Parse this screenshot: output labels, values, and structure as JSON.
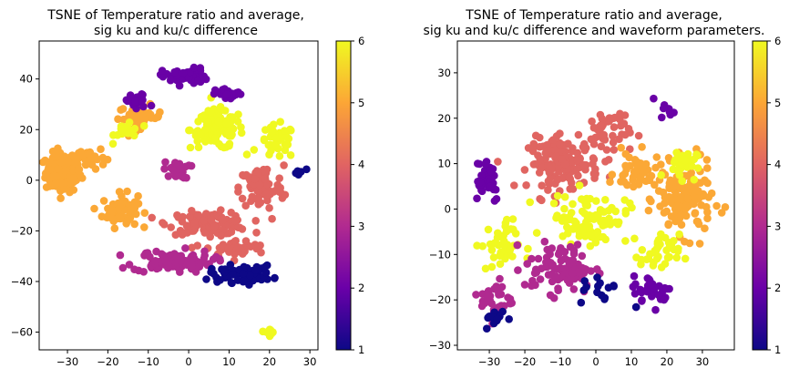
{
  "chart_data": [
    {
      "type": "scatter",
      "title_line1": "TSNE of Temperature ratio and average,",
      "title_line2": "sig ku and ku/c difference",
      "xlim": [
        -37,
        32
      ],
      "ylim": [
        -67,
        55
      ],
      "x_ticks": [
        -30,
        -20,
        -10,
        0,
        10,
        20,
        30
      ],
      "y_ticks": [
        -60,
        -40,
        -20,
        0,
        20,
        40
      ],
      "x_tick_labels": [
        "−30",
        "−20",
        "−10",
        "0",
        "10",
        "20",
        "30"
      ],
      "y_tick_labels": [
        "−60",
        "−40",
        "−20",
        "0",
        "20",
        "40"
      ],
      "colorbar": {
        "min": 1,
        "max": 6,
        "ticks": [
          1,
          2,
          3,
          4,
          5,
          6
        ],
        "tick_labels": [
          "1",
          "2",
          "3",
          "4",
          "5",
          "6"
        ],
        "colormap": "plasma"
      },
      "clusters": [
        {
          "label": "left orange mass",
          "center": [
            -31,
            3
          ],
          "spread": [
            4,
            7
          ],
          "count": 150,
          "value": 5
        },
        {
          "label": "left orange mass upper",
          "center": [
            -25,
            9
          ],
          "spread": [
            4,
            4
          ],
          "count": 40,
          "value": 5
        },
        {
          "label": "orange arc lower",
          "center": [
            -17,
            -12
          ],
          "spread": [
            4,
            6
          ],
          "count": 60,
          "value": 5
        },
        {
          "label": "orange arc top",
          "center": [
            -12,
            25
          ],
          "spread": [
            5,
            4
          ],
          "count": 40,
          "value": 5
        },
        {
          "label": "yellow upper center",
          "center": [
            7,
            20
          ],
          "spread": [
            6,
            7
          ],
          "count": 110,
          "value": 6
        },
        {
          "label": "yellow right",
          "center": [
            22,
            15
          ],
          "spread": [
            4,
            6
          ],
          "count": 40,
          "value": 6
        },
        {
          "label": "yellow upper left",
          "center": [
            -15,
            20
          ],
          "spread": [
            3,
            4
          ],
          "count": 20,
          "value": 6
        },
        {
          "label": "salmon center band",
          "center": [
            5,
            -17
          ],
          "spread": [
            9,
            4
          ],
          "count": 110,
          "value": 4
        },
        {
          "label": "salmon right",
          "center": [
            18,
            -3
          ],
          "spread": [
            5,
            8
          ],
          "count": 80,
          "value": 4
        },
        {
          "label": "salmon lower",
          "center": [
            12,
            -27
          ],
          "spread": [
            7,
            3
          ],
          "count": 40,
          "value": 4
        },
        {
          "label": "magenta lower",
          "center": [
            -4,
            -32
          ],
          "spread": [
            9,
            4
          ],
          "count": 90,
          "value": 3
        },
        {
          "label": "magenta mid",
          "center": [
            -3,
            4
          ],
          "spread": [
            3,
            3
          ],
          "count": 25,
          "value": 3
        },
        {
          "label": "purple top",
          "center": [
            -1,
            41
          ],
          "spread": [
            5,
            3
          ],
          "count": 50,
          "value": 2
        },
        {
          "label": "purple upper right",
          "center": [
            10,
            34
          ],
          "spread": [
            3,
            2
          ],
          "count": 25,
          "value": 2
        },
        {
          "label": "purple upper left",
          "center": [
            -13,
            31
          ],
          "spread": [
            3,
            3
          ],
          "count": 25,
          "value": 2
        },
        {
          "label": "dark navy bottom",
          "center": [
            13,
            -37
          ],
          "spread": [
            7,
            3
          ],
          "count": 70,
          "value": 1
        },
        {
          "label": "navy right point",
          "center": [
            27,
            3
          ],
          "spread": [
            1.5,
            2
          ],
          "count": 6,
          "value": 1
        },
        {
          "label": "small bottom cluster",
          "center": [
            20,
            -60
          ],
          "spread": [
            1,
            1.2
          ],
          "count": 14,
          "value": 6
        }
      ]
    },
    {
      "type": "scatter",
      "title_line1": "TSNE of Temperature ratio and average,",
      "title_line2": "sig ku and ku/c difference and waveform parameters.",
      "xlim": [
        -39,
        39
      ],
      "ylim": [
        -31,
        37
      ],
      "x_ticks": [
        -30,
        -20,
        -10,
        0,
        10,
        20,
        30
      ],
      "y_ticks": [
        -30,
        -20,
        -10,
        0,
        10,
        20,
        30
      ],
      "x_tick_labels": [
        "−30",
        "−20",
        "−10",
        "0",
        "10",
        "20",
        "30"
      ],
      "y_tick_labels": [
        "−30",
        "−20",
        "−10",
        "0",
        "10",
        "20",
        "30"
      ],
      "colorbar": {
        "min": 1,
        "max": 6,
        "ticks": [
          1,
          2,
          3,
          4,
          5,
          6
        ],
        "tick_labels": [
          "1",
          "2",
          "3",
          "4",
          "5",
          "6"
        ],
        "colormap": "plasma"
      },
      "clusters": [
        {
          "label": "salmon upper center",
          "center": [
            -9,
            10
          ],
          "spread": [
            9,
            5
          ],
          "count": 140,
          "value": 4
        },
        {
          "label": "salmon upper",
          "center": [
            3,
            17
          ],
          "spread": [
            6,
            5
          ],
          "count": 50,
          "value": 4
        },
        {
          "label": "orange right",
          "center": [
            25,
            2
          ],
          "spread": [
            7,
            7
          ],
          "count": 140,
          "value": 5
        },
        {
          "label": "orange mid",
          "center": [
            12,
            8
          ],
          "spread": [
            6,
            4
          ],
          "count": 50,
          "value": 5
        },
        {
          "label": "yellow center",
          "center": [
            -2,
            -2
          ],
          "spread": [
            10,
            5
          ],
          "count": 90,
          "value": 6
        },
        {
          "label": "yellow right",
          "center": [
            24,
            10
          ],
          "spread": [
            4,
            3
          ],
          "count": 30,
          "value": 6
        },
        {
          "label": "yellow left",
          "center": [
            -27,
            -8
          ],
          "spread": [
            5,
            5
          ],
          "count": 40,
          "value": 6
        },
        {
          "label": "yellow lower right",
          "center": [
            18,
            -10
          ],
          "spread": [
            5,
            4
          ],
          "count": 40,
          "value": 6
        },
        {
          "label": "magenta lower",
          "center": [
            -10,
            -13
          ],
          "spread": [
            9,
            5
          ],
          "count": 90,
          "value": 3
        },
        {
          "label": "magenta left",
          "center": [
            -28,
            -20
          ],
          "spread": [
            4,
            4
          ],
          "count": 30,
          "value": 3
        },
        {
          "label": "purple left",
          "center": [
            -31,
            7
          ],
          "spread": [
            4,
            5
          ],
          "count": 40,
          "value": 2
        },
        {
          "label": "purple lower right",
          "center": [
            16,
            -18
          ],
          "spread": [
            5,
            3
          ],
          "count": 35,
          "value": 2
        },
        {
          "label": "navy lower left",
          "center": [
            -28,
            -24
          ],
          "spread": [
            3,
            2
          ],
          "count": 15,
          "value": 1
        },
        {
          "label": "navy scattered",
          "center": [
            2,
            -18
          ],
          "spread": [
            6,
            3
          ],
          "count": 15,
          "value": 1
        },
        {
          "label": "purple upper",
          "center": [
            20,
            22
          ],
          "spread": [
            2,
            2
          ],
          "count": 8,
          "value": 2
        }
      ]
    }
  ]
}
